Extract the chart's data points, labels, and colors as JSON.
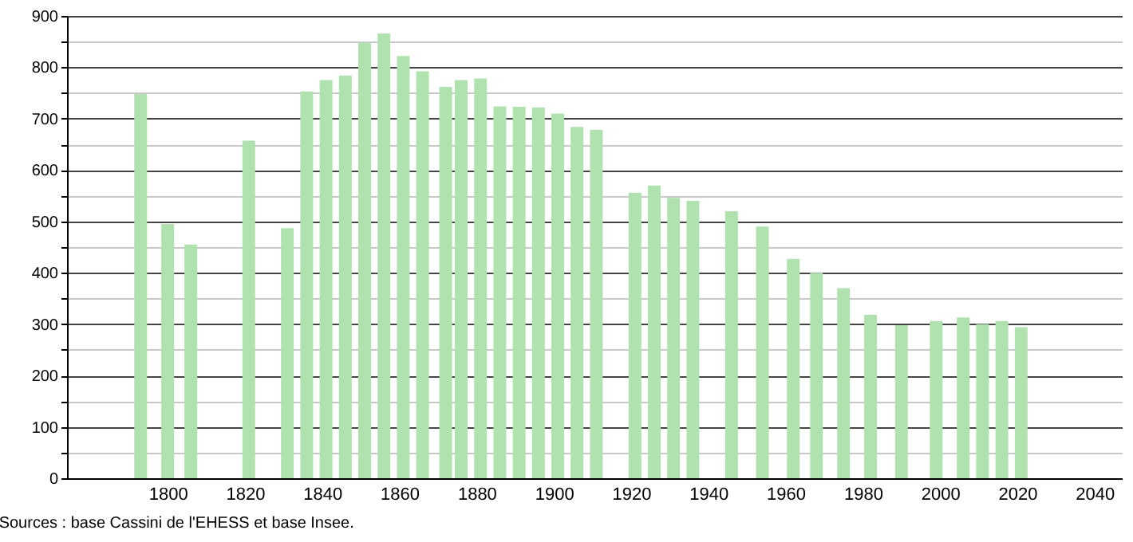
{
  "chart_data": {
    "type": "bar",
    "annotations": [
      "Sources : base Cassini de l'EHESS et base Insee."
    ],
    "x": [
      1793,
      1800,
      1806,
      1821,
      1831,
      1836,
      1841,
      1846,
      1851,
      1856,
      1861,
      1866,
      1872,
      1876,
      1881,
      1886,
      1891,
      1896,
      1901,
      1906,
      1911,
      1921,
      1926,
      1931,
      1936,
      1946,
      1954,
      1962,
      1968,
      1975,
      1982,
      1990,
      1999,
      2006,
      2011,
      2016,
      2021
    ],
    "values": [
      748,
      495,
      455,
      657,
      487,
      753,
      775,
      784,
      848,
      866,
      822,
      792,
      762,
      775,
      778,
      724,
      723,
      722,
      710,
      684,
      678,
      556,
      570,
      546,
      540,
      520,
      490,
      427,
      400,
      370,
      318,
      298,
      306,
      313,
      300,
      306,
      294
    ],
    "color": "#b0e2b0",
    "xlim": [
      1776,
      2045
    ],
    "xticks": [
      1800,
      1820,
      1840,
      1860,
      1880,
      1900,
      1920,
      1940,
      1960,
      1980,
      2000,
      2020,
      2040
    ],
    "ylim": [
      0,
      900
    ],
    "yticks": [
      0,
      {
        "value": 50,
        "label": null
      },
      100,
      {
        "value": 150,
        "label": null
      },
      200,
      {
        "value": 250,
        "label": null
      },
      300,
      {
        "value": 350,
        "label": null
      },
      400,
      {
        "value": 450,
        "label": null
      },
      500,
      {
        "value": 550,
        "label": null
      },
      600,
      {
        "value": 650,
        "label": null
      },
      700,
      {
        "value": 750,
        "label": null
      },
      800,
      {
        "value": 850,
        "label": null
      },
      900
    ],
    "grid": "y"
  }
}
